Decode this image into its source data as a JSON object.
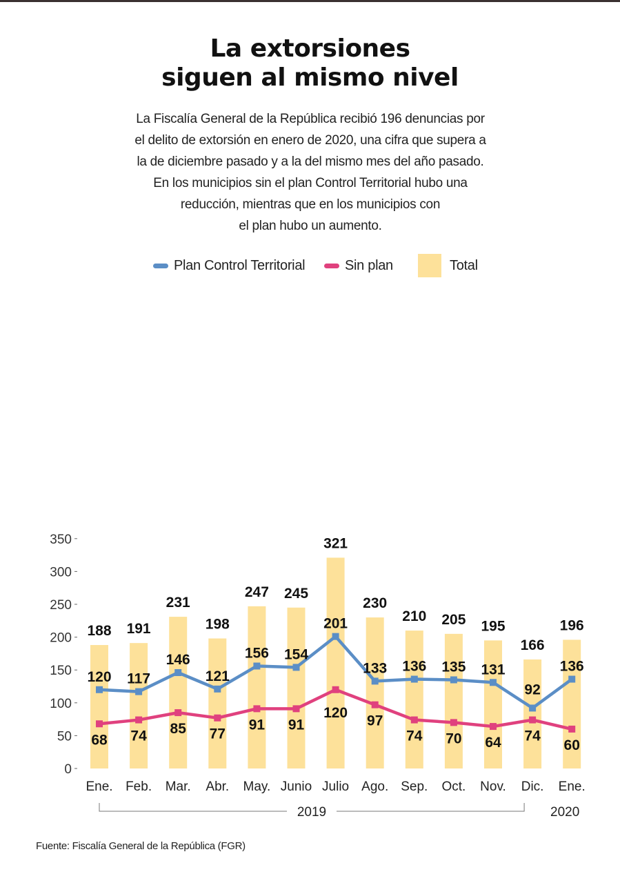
{
  "title_lines": [
    "La extorsiones",
    "siguen al mismo nivel"
  ],
  "description_lines": [
    "La Fiscalía General de la República recibió 196 denuncias por",
    "el delito de extorsión en enero de 2020, una cifra que supera a",
    "la de diciembre pasado y a la del mismo mes del año pasado.",
    "En los municipios sin el plan Control Territorial hubo una",
    "reducción, mientras que en los municipios con",
    "el plan hubo un aumento."
  ],
  "legend": [
    {
      "label": "Plan Control Territorial",
      "color": "#5b8ec6",
      "kind": "line"
    },
    {
      "label": "Sin plan",
      "color": "#e0417e",
      "kind": "line"
    },
    {
      "label": "Total",
      "color": "#fde19a",
      "kind": "bar"
    }
  ],
  "source": "Fuente: Fiscalía General de la República (FGR)",
  "chart_data": {
    "type": "bar",
    "categories": [
      "Ene.",
      "Feb.",
      "Mar.",
      "Abr.",
      "May.",
      "Junio",
      "Julio",
      "Ago.",
      "Sep.",
      "Oct.",
      "Nov.",
      "Dic.",
      "Ene."
    ],
    "series": [
      {
        "name": "Total",
        "type": "bar",
        "color": "#fde19a",
        "values": [
          188,
          191,
          231,
          198,
          247,
          245,
          321,
          230,
          210,
          205,
          195,
          166,
          196
        ]
      },
      {
        "name": "Plan Control Territorial",
        "type": "line",
        "color": "#5b8ec6",
        "values": [
          120,
          117,
          146,
          121,
          156,
          154,
          201,
          133,
          136,
          135,
          131,
          92,
          136
        ]
      },
      {
        "name": "Sin plan",
        "type": "line",
        "color": "#e0417e",
        "values": [
          68,
          74,
          85,
          77,
          91,
          91,
          120,
          97,
          74,
          70,
          64,
          74,
          60
        ]
      }
    ],
    "ylim": [
      0,
      350
    ],
    "yticks": [
      0,
      50,
      100,
      150,
      200,
      250,
      300,
      350
    ],
    "groups": [
      {
        "label": "2019",
        "from": 0,
        "to": 11
      },
      {
        "label": "2020",
        "from": 12,
        "to": 12
      }
    ],
    "grid": false,
    "legend_position": "top"
  }
}
